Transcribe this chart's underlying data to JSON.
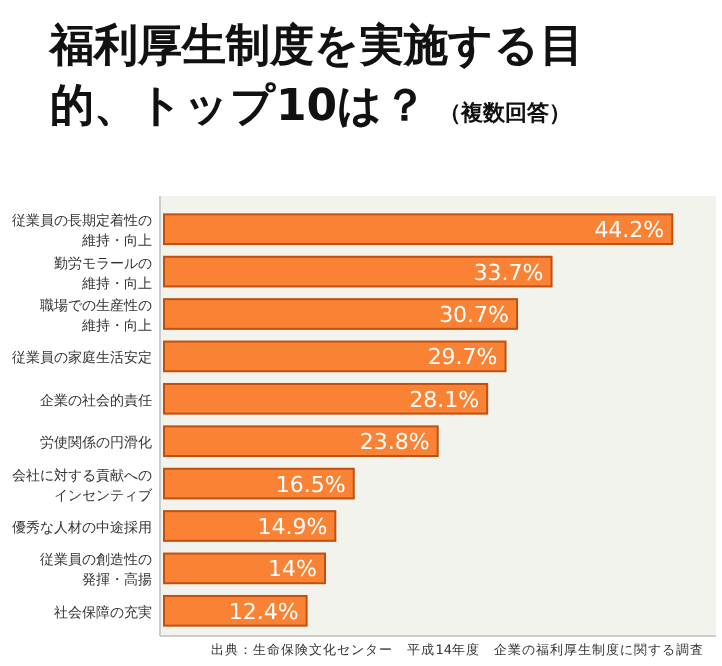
{
  "chart_data": {
    "type": "bar",
    "orientation": "horizontal",
    "title": "福利厚生制度を実施する目的、トップ10は？",
    "subtitle": "（複数回答）",
    "categories": [
      "従業員の長期定着性の維持・向上",
      "勤労モラールの維持・向上",
      "職場での生産性の維持・向上",
      "従業員の家庭生活安定",
      "企業の社会的責任",
      "労使関係の円滑化",
      "会社に対する貢献へのインセンティブ",
      "優秀な人材の中途採用",
      "従業員の創造性の発揮・高揚",
      "社会保障の充実"
    ],
    "values": [
      44.2,
      33.7,
      30.7,
      29.7,
      28.1,
      23.8,
      16.5,
      14.9,
      14,
      12.4
    ],
    "value_labels": [
      "44.2%",
      "33.7%",
      "30.7%",
      "29.7%",
      "28.1%",
      "23.8%",
      "16.5%",
      "14.9%",
      "14%",
      "12.4%"
    ],
    "color": "#fa8234",
    "xlim": [
      0,
      48
    ],
    "grid": false,
    "annotations": [
      "出典：生命保険文化センター　平成14年度　企業の福利厚生制度に関する調査"
    ]
  }
}
